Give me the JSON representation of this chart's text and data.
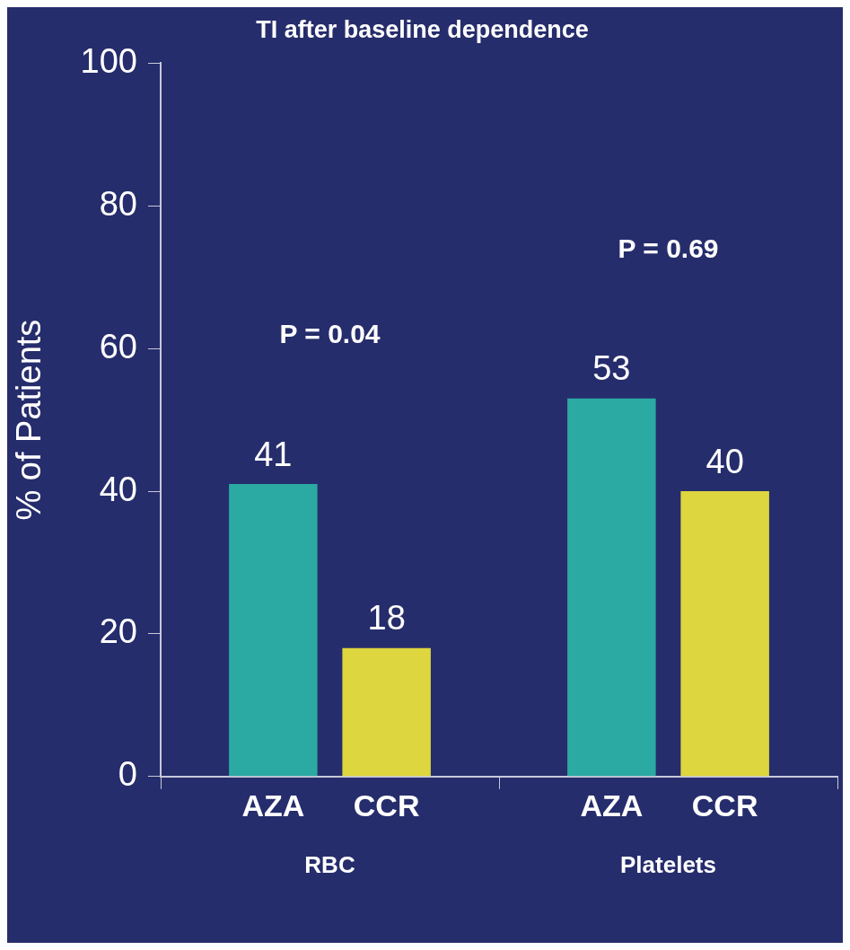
{
  "chart_data": {
    "type": "bar",
    "title": "TI after baseline dependence",
    "ylabel": "% of Patients",
    "categories": [
      "RBC",
      "Platelets"
    ],
    "series": [
      {
        "name": "AZA",
        "color": "#2ba9a3",
        "values": [
          41,
          53
        ]
      },
      {
        "name": "CCR",
        "color": "#ddd63e",
        "values": [
          18,
          40
        ]
      }
    ],
    "ylim": [
      0,
      100
    ],
    "yticks": [
      0,
      20,
      40,
      60,
      80,
      100
    ],
    "grid": false,
    "legend": false,
    "data_labels": true,
    "annotations": [
      "P = 0.04",
      "P = 0.69"
    ]
  }
}
